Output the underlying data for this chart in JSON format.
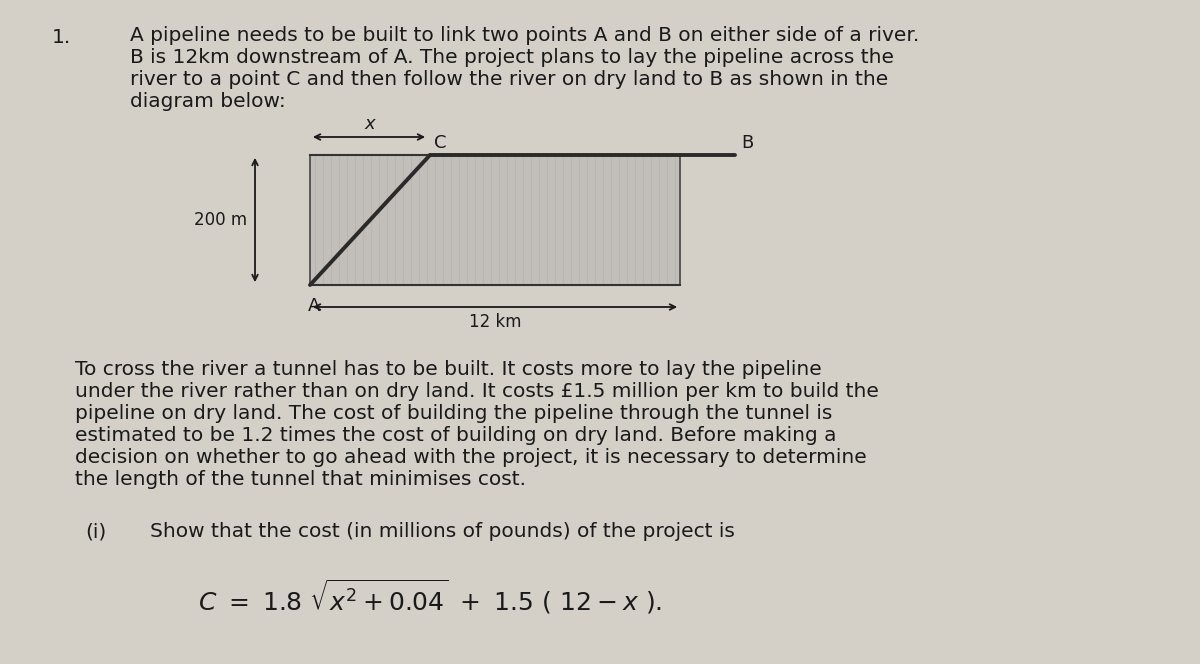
{
  "page_bg": "#d4d0c8",
  "text_color": "#1a1a1a",
  "river_color": "#b8b5b0",
  "pipeline_color": "#2a2a2a",
  "arrow_color": "#1a1a1a",
  "font_size_body": 14.5,
  "font_size_formula": 17,
  "title_num": "1.",
  "paragraph1_lines": [
    "A pipeline needs to be built to link two points A and B on either side of a river.",
    "B is 12km downstream of A. The project plans to lay the pipeline across the",
    "river to a point C and then follow the river on dry land to B as shown in the",
    "diagram below:"
  ],
  "paragraph2_lines": [
    "To cross the river a tunnel has to be built. It costs more to lay the pipeline",
    "under the river rather than on dry land. It costs £1.5 million per km to build the",
    "pipeline on dry land. The cost of building the pipeline through the tunnel is",
    "estimated to be 1.2 times the cost of building on dry land. Before making a",
    "decision on whether to go ahead with the project, it is necessary to determine",
    "the length of the tunnel that minimises cost."
  ],
  "part_i_label": "(i)",
  "part_i_text": "Show that the cost (in millions of pounds) of the project is",
  "diagram_200m": "200 m",
  "diagram_x": "x",
  "diagram_12km": "12 km",
  "diagram_A": "A",
  "diagram_C": "C",
  "diagram_B": "B"
}
